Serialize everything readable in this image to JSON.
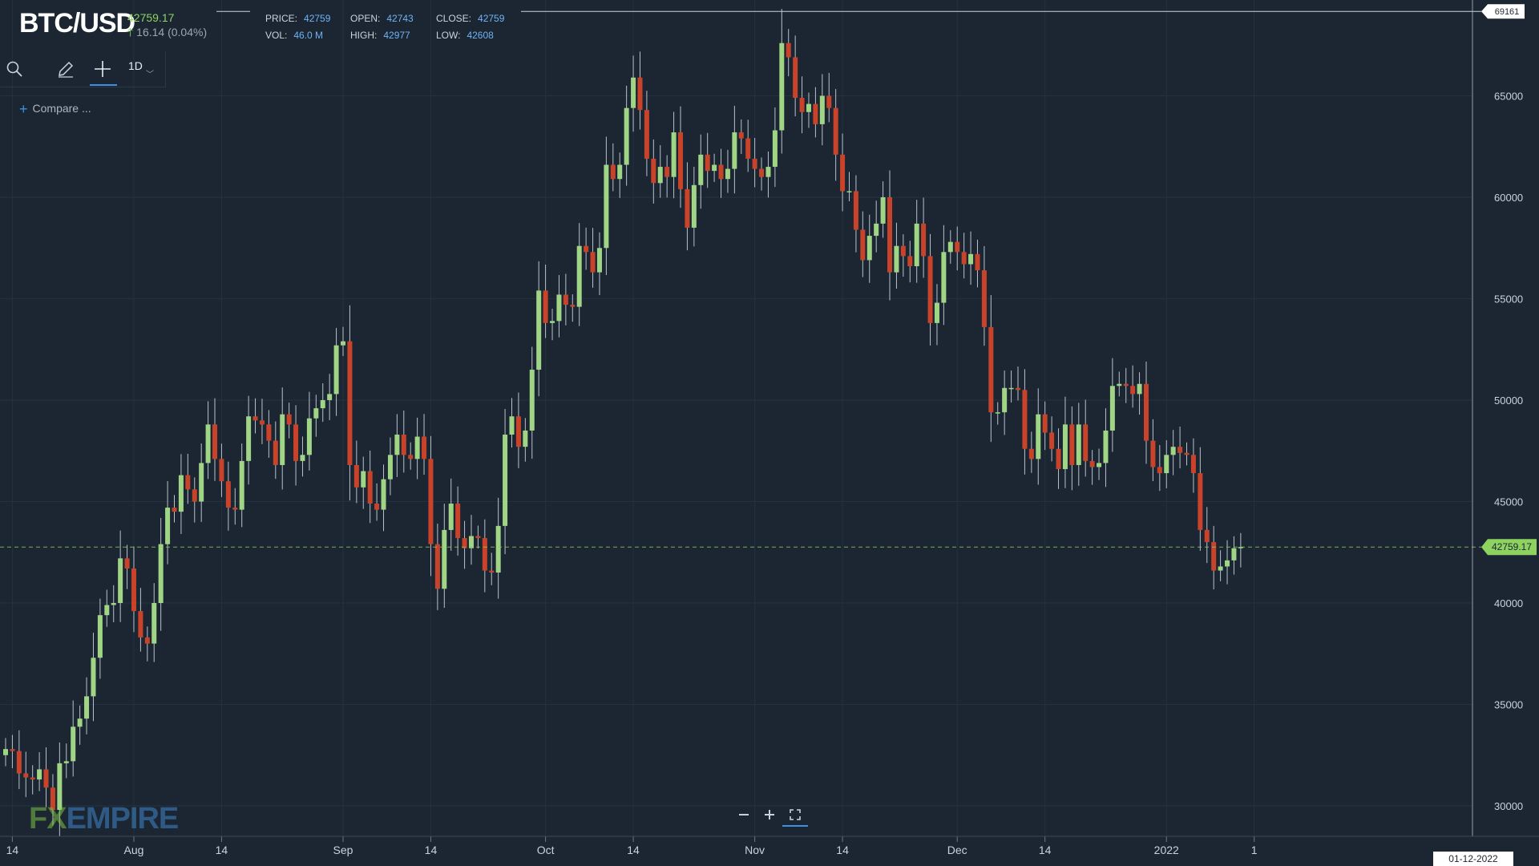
{
  "header": {
    "symbol": "BTC/USD",
    "price": "42759.17",
    "change": "16.14 (0.04%)",
    "stats": [
      {
        "label": "PRICE:",
        "value": "42759"
      },
      {
        "label": "OPEN:",
        "value": "42743"
      },
      {
        "label": "CLOSE:",
        "value": "42759"
      },
      {
        "label": "VOL:",
        "value": "46.0 M"
      },
      {
        "label": "HIGH:",
        "value": "42977"
      },
      {
        "label": "LOW:",
        "value": "42608"
      }
    ]
  },
  "toolbar": {
    "timeframe": "1D",
    "icons": [
      "search-icon",
      "pencil-icon",
      "crosshair-icon",
      "chevron-down-icon"
    ]
  },
  "compare_label": "Compare ...",
  "zoom_controls": [
    "minus-icon",
    "plus-icon",
    "fullscreen-icon"
  ],
  "logo": {
    "fx": "FX",
    "empire": "EMPIRE"
  },
  "cursor_date": "01-12-2022",
  "colors": {
    "background": "#1b2632",
    "up": "#9fd585",
    "down": "#c9432a",
    "accent": "#3d8fe0",
    "price_tag": "#8ed260"
  },
  "chart_data": {
    "type": "candlestick",
    "ylim": [
      28500,
      69500
    ],
    "y_ticks": [
      30000,
      35000,
      40000,
      45000,
      50000,
      55000,
      60000,
      65000
    ],
    "x_tick_labels": [
      {
        "date": "2021-07-14",
        "label": "14"
      },
      {
        "date": "2021-08-01",
        "label": "Aug"
      },
      {
        "date": "2021-08-14",
        "label": "14"
      },
      {
        "date": "2021-09-01",
        "label": "Sep"
      },
      {
        "date": "2021-09-14",
        "label": "14"
      },
      {
        "date": "2021-10-01",
        "label": "Oct"
      },
      {
        "date": "2021-10-14",
        "label": "14"
      },
      {
        "date": "2021-11-01",
        "label": "Nov"
      },
      {
        "date": "2021-11-14",
        "label": "14"
      },
      {
        "date": "2021-12-01",
        "label": "Dec"
      },
      {
        "date": "2021-12-14",
        "label": "14"
      },
      {
        "date": "2022-01-01",
        "label": "2022"
      },
      {
        "date": "2022-01-14",
        "label": "1"
      }
    ],
    "high_marker": 69161,
    "current_price": 42759.17,
    "current_price_label": "42759.17",
    "high_marker_label": "69161",
    "start_date": "2021-07-13",
    "closes": [
      32800,
      32700,
      31600,
      31400,
      31300,
      31800,
      30900,
      29800,
      32100,
      32200,
      33900,
      34300,
      35400,
      37300,
      39400,
      39900,
      40000,
      42200,
      41700,
      39600,
      38300,
      38000,
      40000,
      42900,
      44700,
      44500,
      46300,
      45600,
      45000,
      46900,
      48800,
      47100,
      46000,
      44700,
      44600,
      47000,
      49200,
      49000,
      48800,
      48000,
      46800,
      49300,
      48800,
      47000,
      47300,
      49100,
      49600,
      50000,
      50300,
      52700,
      52900,
      46800,
      45700,
      46500,
      44900,
      44600,
      46100,
      47300,
      48300,
      47300,
      47100,
      48200,
      47100,
      42900,
      40700,
      43600,
      44900,
      43200,
      42700,
      43300,
      43200,
      41600,
      41500,
      43800,
      48300,
      49200,
      47700,
      48500,
      51500,
      55400,
      53800,
      53900,
      55200,
      54700,
      54600,
      57600,
      57300,
      56300,
      57500,
      61600,
      60900,
      61600,
      64400,
      65900,
      64300,
      61900,
      60700,
      61500,
      61000,
      63200,
      60400,
      58500,
      60600,
      62100,
      61300,
      61600,
      60900,
      61400,
      63200,
      62900,
      61900,
      61400,
      61000,
      61500,
      63300,
      67600,
      66900,
      64900,
      64200,
      64600,
      63600,
      65000,
      64400,
      62100,
      60300,
      60300,
      58400,
      56900,
      58100,
      58700,
      60000,
      56300,
      57600,
      57100,
      56600,
      58700,
      57100,
      53800,
      54800,
      57300,
      57800,
      57300,
      56700,
      57200,
      56400,
      53600,
      49400,
      49400,
      50600,
      50600,
      50500,
      47600,
      47100,
      49300,
      48400,
      47600,
      46600,
      48800,
      46800,
      48800,
      47000,
      46700,
      46900,
      48500,
      50700,
      50800,
      50700,
      50300,
      50800,
      48000,
      46700,
      46400,
      47300,
      47700,
      47400,
      47300,
      46400,
      43600,
      43000,
      41600,
      41800,
      42100,
      42700,
      42759
    ]
  }
}
